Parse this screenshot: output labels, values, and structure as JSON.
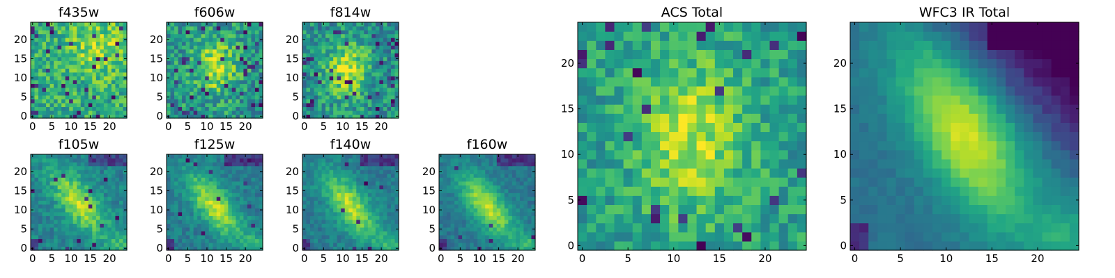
{
  "chart_data": {
    "type": "heatmap",
    "colormap": "viridis",
    "grid": false,
    "value_range": [
      0,
      1
    ],
    "panels": [
      {
        "id": "f435w",
        "title": "f435w",
        "xticks": [
          "0",
          "5",
          "10",
          "15",
          "20"
        ],
        "yticks": [
          "0",
          "5",
          "10",
          "15",
          "20"
        ],
        "xlim": [
          0,
          25
        ],
        "ylim": [
          0,
          25
        ],
        "pattern": {
          "base": 0.62,
          "cx": 17,
          "cy": 18,
          "sx": 5,
          "sy": 5,
          "amp": 0.25,
          "rho": 0.0,
          "noise": 0.4,
          "dark_fraction": 0.05,
          "seed": 11
        }
      },
      {
        "id": "f606w",
        "title": "f606w",
        "xticks": [
          "0",
          "5",
          "10",
          "15",
          "20"
        ],
        "yticks": [
          "0",
          "5",
          "10",
          "15",
          "20"
        ],
        "xlim": [
          0,
          25
        ],
        "ylim": [
          0,
          25
        ],
        "pattern": {
          "base": 0.52,
          "cx": 12,
          "cy": 13,
          "sx": 4,
          "sy": 5,
          "amp": 0.38,
          "rho": 0.0,
          "noise": 0.42,
          "dark_fraction": 0.06,
          "seed": 23
        }
      },
      {
        "id": "f814w",
        "title": "f814w",
        "xticks": [
          "0",
          "5",
          "10",
          "15",
          "20"
        ],
        "yticks": [
          "0",
          "5",
          "10",
          "15",
          "20"
        ],
        "xlim": [
          0,
          25
        ],
        "ylim": [
          0,
          25
        ],
        "pattern": {
          "base": 0.5,
          "cx": 11,
          "cy": 12,
          "sx": 4,
          "sy": 5,
          "amp": 0.4,
          "rho": 0.0,
          "noise": 0.4,
          "dark_fraction": 0.06,
          "seed": 37
        }
      },
      {
        "id": "f105w",
        "title": "f105w",
        "xticks": [
          "0",
          "5",
          "10",
          "15",
          "20"
        ],
        "yticks": [
          "0",
          "5",
          "10",
          "15",
          "20"
        ],
        "xlim": [
          0,
          25
        ],
        "ylim": [
          0,
          25
        ],
        "pattern": {
          "base": 0.45,
          "cx": 12,
          "cy": 12,
          "sx": 5,
          "sy": 6,
          "amp": 0.45,
          "rho": -0.7,
          "noise": 0.22,
          "dark_fraction": 0.02,
          "corner": 0.5,
          "seed": 41
        }
      },
      {
        "id": "f125w",
        "title": "f125w",
        "xticks": [
          "0",
          "5",
          "10",
          "15",
          "20"
        ],
        "yticks": [
          "0",
          "5",
          "10",
          "15",
          "20"
        ],
        "xlim": [
          0,
          25
        ],
        "ylim": [
          0,
          25
        ],
        "pattern": {
          "base": 0.42,
          "cx": 12,
          "cy": 11,
          "sx": 5,
          "sy": 6,
          "amp": 0.48,
          "rho": -0.7,
          "noise": 0.2,
          "dark_fraction": 0.02,
          "corner": 0.55,
          "seed": 53
        }
      },
      {
        "id": "f140w",
        "title": "f140w",
        "xticks": [
          "0",
          "5",
          "10",
          "15",
          "20"
        ],
        "yticks": [
          "0",
          "5",
          "10",
          "15",
          "20"
        ],
        "xlim": [
          0,
          25
        ],
        "ylim": [
          0,
          25
        ],
        "pattern": {
          "base": 0.42,
          "cx": 12,
          "cy": 11,
          "sx": 5,
          "sy": 6,
          "amp": 0.48,
          "rho": -0.7,
          "noise": 0.18,
          "dark_fraction": 0.01,
          "corner": 0.6,
          "seed": 67
        }
      },
      {
        "id": "f160w",
        "title": "f160w",
        "xticks": [
          "0",
          "5",
          "10",
          "15",
          "20"
        ],
        "yticks": [
          "0",
          "5",
          "10",
          "15",
          "20"
        ],
        "xlim": [
          0,
          25
        ],
        "ylim": [
          0,
          25
        ],
        "pattern": {
          "base": 0.4,
          "cx": 12,
          "cy": 11,
          "sx": 5,
          "sy": 6,
          "amp": 0.5,
          "rho": -0.7,
          "noise": 0.16,
          "dark_fraction": 0.01,
          "corner": 0.65,
          "seed": 79
        }
      },
      {
        "id": "acs-total",
        "title": "ACS Total",
        "xticks": [
          "0",
          "5",
          "10",
          "15",
          "20"
        ],
        "yticks": [
          "0",
          "5",
          "10",
          "15",
          "20"
        ],
        "xlim": [
          0,
          25
        ],
        "ylim": [
          0,
          25
        ],
        "pattern": {
          "base": 0.56,
          "cx": 12,
          "cy": 12,
          "sx": 4,
          "sy": 6,
          "amp": 0.35,
          "rho": 0.0,
          "noise": 0.32,
          "dark_fraction": 0.04,
          "seed": 97
        }
      },
      {
        "id": "wfc3-ir-total",
        "title": "WFC3 IR Total",
        "xticks": [
          "0",
          "5",
          "10",
          "15",
          "20"
        ],
        "yticks": [
          "0",
          "5",
          "10",
          "15",
          "20"
        ],
        "xlim": [
          0,
          25
        ],
        "ylim": [
          0,
          25
        ],
        "pattern": {
          "base": 0.38,
          "cx": 12,
          "cy": 12,
          "sx": 5,
          "sy": 7,
          "amp": 0.55,
          "rho": -0.65,
          "noise": 0.08,
          "dark_fraction": 0.0,
          "corner": 0.6,
          "topright_dark": 0.45,
          "seed": 101
        }
      }
    ]
  }
}
